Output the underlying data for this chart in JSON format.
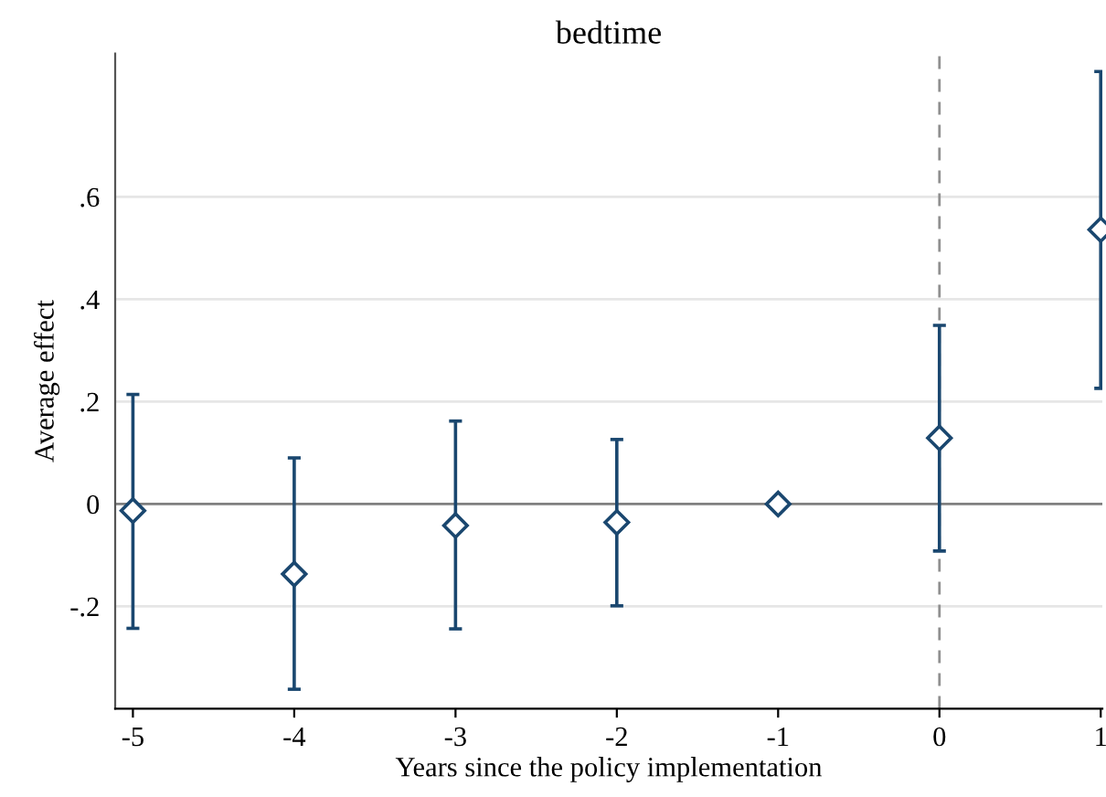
{
  "chart_data": {
    "type": "scatter",
    "title": "bedtime",
    "xlabel": "Years since the policy implementation",
    "ylabel": "Average effect",
    "x": [
      -5,
      -4,
      -3,
      -2,
      -1,
      0,
      1
    ],
    "values": [
      -0.013,
      -0.137,
      -0.042,
      -0.036,
      0,
      0.129,
      0.536
    ],
    "errors": [
      [
        -0.243,
        0.214
      ],
      [
        -0.362,
        0.09
      ],
      [
        -0.244,
        0.162
      ],
      [
        -0.199,
        0.126
      ],
      null,
      [
        -0.092,
        0.349
      ],
      [
        0.226,
        0.845
      ]
    ],
    "color": "#1a476f",
    "marker": "diamond",
    "xlim": [
      -5.11,
      1.01
    ],
    "xticks": [
      -5,
      -4,
      -3,
      -2,
      -1,
      0,
      1
    ],
    "ylim": [
      -0.4,
      0.88
    ],
    "yticks": [
      {
        "value": -0.2,
        "label": "-.2"
      },
      0,
      {
        "value": 0.2,
        "label": ".2"
      },
      {
        "value": 0.4,
        "label": ".4"
      },
      {
        "value": 0.6,
        "label": ".6"
      }
    ],
    "grid": "y",
    "ref_lines": [
      {
        "axis": "y",
        "value": 0,
        "color": "#808080",
        "line_style": "solid"
      },
      {
        "axis": "x",
        "value": 0,
        "color": "#909090",
        "line_style": "dashed"
      }
    ]
  }
}
